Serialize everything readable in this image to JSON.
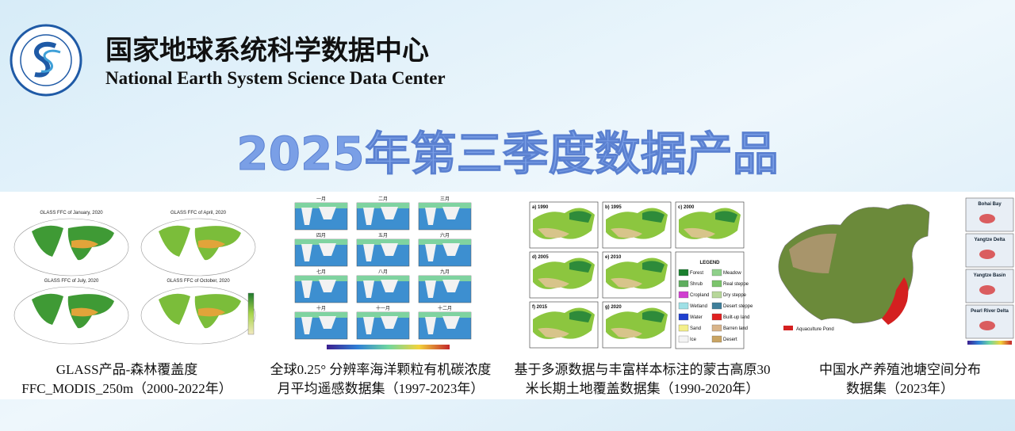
{
  "header": {
    "title_cn": "国家地球系统科学数据中心",
    "title_en": "National Earth System Science Data Center"
  },
  "banner_title": "2025年第三季度数据产品",
  "products": [
    {
      "caption": [
        "GLASS产品-森林覆盖度",
        "FFC_MODIS_250m（2000-2022年）"
      ],
      "map_titles": [
        "GLASS FFC of January, 2020",
        "GLASS FFC of April, 2020",
        "GLASS FFC of July, 2020",
        "GLASS FFC of October, 2020"
      ]
    },
    {
      "caption": [
        "全球0.25° 分辨率海洋颗粒有机碳浓度",
        "月平均遥感数据集（1997-2023年）"
      ],
      "month_labels": [
        "一月",
        "二月",
        "三月",
        "四月",
        "五月",
        "六月",
        "七月",
        "八月",
        "九月",
        "十月",
        "十一月",
        "十二月"
      ]
    },
    {
      "caption": [
        "基于多源数据与丰富样本标注的蒙古高原30",
        "米长期土地覆盖数据集（1990-2020年）"
      ],
      "panel_labels": [
        "a) 1990",
        "b) 1995",
        "c) 2000",
        "d) 2005",
        "e) 2010",
        "f) 2015",
        "g) 2020"
      ],
      "legend_title": "LEGEND",
      "legend_items": [
        "Forest",
        "Meadow",
        "Shrub",
        "Real steppe",
        "Cropland",
        "Dry steppe",
        "Wetland",
        "Desert steppe",
        "Water",
        "Built-up land",
        "Sand",
        "Barren land",
        "Ice",
        "Desert"
      ]
    },
    {
      "caption": [
        "中国水产养殖池塘空间分布",
        "数据集（2023年）"
      ],
      "insets": [
        "Bohai Bay",
        "Yangtze Delta",
        "Yangtze Basin",
        "Pearl River Delta"
      ],
      "legend": "Aquaculture Pond"
    }
  ]
}
